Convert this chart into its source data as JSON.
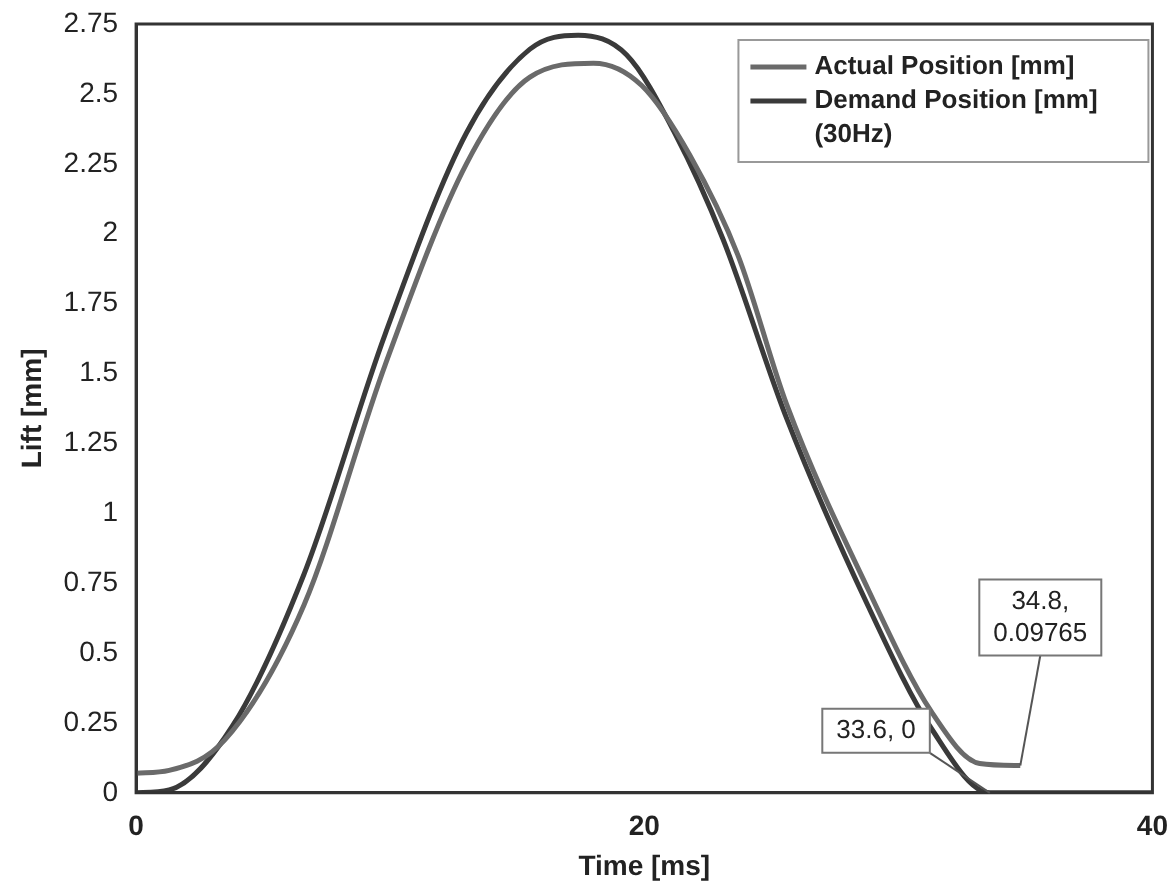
{
  "chart_data": {
    "type": "line",
    "xlabel": "Time [ms]",
    "ylabel": "Lift [mm]",
    "xlim": [
      0,
      40
    ],
    "xticks": [
      0,
      20,
      40
    ],
    "ylim": [
      0,
      2.75
    ],
    "yticks": [
      0,
      0.25,
      0.5,
      0.75,
      1,
      1.25,
      1.5,
      1.75,
      2,
      2.25,
      2.5,
      2.75
    ],
    "grid": false,
    "legend": "top right",
    "marker": "none",
    "line_style": "solid",
    "series": [
      {
        "name": "Actual Position [mm]",
        "color": "#6a6a6a",
        "x": [
          0,
          1.3,
          3.5,
          6.6,
          9.8,
          13.0,
          15.5,
          18.0,
          19.9,
          21.8,
          23.7,
          25.6,
          28.8,
          31.3,
          33.2,
          34.8
        ],
        "values": [
          0.07,
          0.08,
          0.19,
          0.67,
          1.53,
          2.25,
          2.56,
          2.61,
          2.53,
          2.28,
          1.92,
          1.39,
          0.73,
          0.29,
          0.105,
          0.09765
        ]
      },
      {
        "name": "Demand Position [mm] (30Hz)",
        "color": "#3a3a3a",
        "x": [
          0,
          1.3,
          3.8,
          6.6,
          9.8,
          13.0,
          15.5,
          17.4,
          19.3,
          21.2,
          23.1,
          25.6,
          28.8,
          31.3,
          33.6,
          40
        ],
        "values": [
          0,
          0.01,
          0.24,
          0.78,
          1.64,
          2.36,
          2.66,
          2.71,
          2.64,
          2.36,
          1.98,
          1.34,
          0.67,
          0.23,
          0,
          0
        ]
      }
    ],
    "annotations": [
      {
        "text": "33.6, 0",
        "x": 33.6,
        "y": 0
      },
      {
        "text": "34.8,\n0.09765",
        "x": 34.8,
        "y": 0.09765
      }
    ]
  }
}
